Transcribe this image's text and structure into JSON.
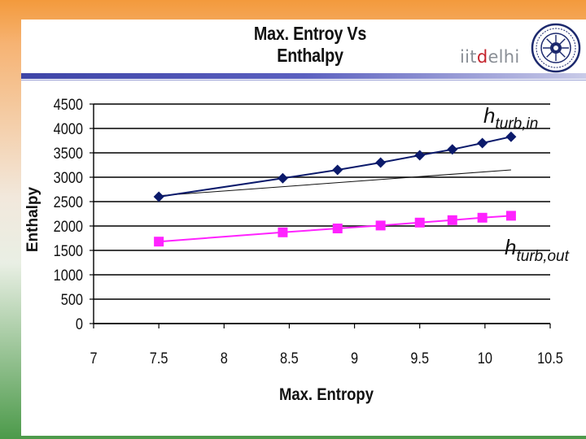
{
  "header": {
    "title": "Max. Entroy Vs Enthalpy",
    "logo_part1": "iit",
    "logo_part2": "d",
    "logo_part3": "elhi"
  },
  "colors": {
    "series_in": "#0b1a6b",
    "series_out": "#ff22ff",
    "trendline": "#111111",
    "rule": "#3e45a7"
  },
  "chart_data": {
    "type": "scatter",
    "xlabel": "Max. Entropy",
    "ylabel": "Enthalpy",
    "xlim": [
      7,
      10.5
    ],
    "ylim": [
      0,
      4500
    ],
    "xticks": [
      7,
      7.5,
      8,
      8.5,
      9,
      9.5,
      10,
      10.5
    ],
    "xtick_labels": [
      "7",
      "7.5",
      "8",
      "8.5",
      "9",
      "9.5",
      "10",
      "10.5"
    ],
    "yticks": [
      0,
      500,
      1000,
      1500,
      2000,
      2500,
      3000,
      3500,
      4000,
      4500
    ],
    "ytick_labels": [
      "0",
      "500",
      "1000",
      "1500",
      "2000",
      "2500",
      "3000",
      "3500",
      "4000",
      "4500"
    ],
    "grid": "horizontal",
    "series": [
      {
        "name": "h_turb,in",
        "marker": "diamond",
        "x": [
          7.5,
          8.45,
          8.87,
          9.2,
          9.5,
          9.75,
          9.98,
          10.2
        ],
        "y": [
          2600,
          2980,
          3150,
          3300,
          3450,
          3570,
          3700,
          3830
        ]
      },
      {
        "name": "h_turb,out",
        "marker": "square",
        "x": [
          7.5,
          8.45,
          8.87,
          9.2,
          9.5,
          9.75,
          9.98,
          10.2
        ],
        "y": [
          1680,
          1870,
          1950,
          2010,
          2070,
          2120,
          2170,
          2210
        ]
      }
    ],
    "trendline": {
      "x": [
        7.5,
        10.2
      ],
      "y": [
        2620,
        3150
      ]
    },
    "annotations": [
      {
        "base": "h",
        "sub": "turb,in"
      },
      {
        "base": "h",
        "sub": "turb,out"
      }
    ]
  }
}
